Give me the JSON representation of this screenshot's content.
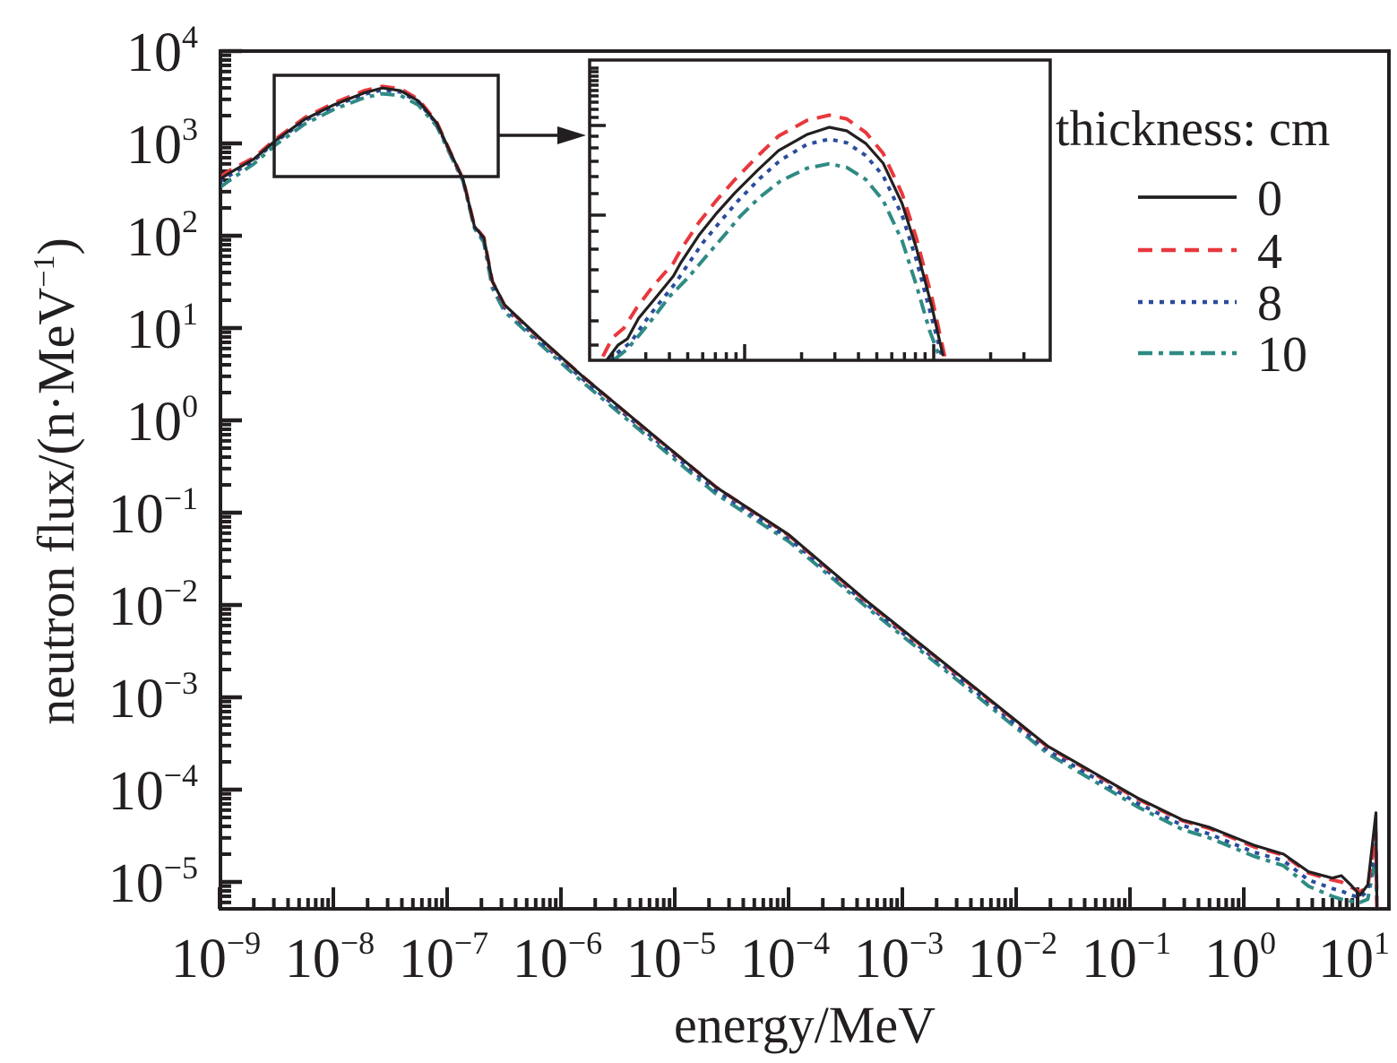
{
  "chart_data": {
    "type": "line",
    "title": "",
    "xlabel": "energy/MeV",
    "ylabel_main": "neutron flux/(n·MeV",
    "ylabel_sup": "−1",
    "ylabel_close": ")",
    "xscale": "log",
    "yscale": "log",
    "xlim": [
      1e-09,
      20
    ],
    "ylim": [
      5e-06,
      10000
    ],
    "grid": false,
    "x_ticks": [
      {
        "base": "10",
        "exp": "−9",
        "value": 1e-09
      },
      {
        "base": "10",
        "exp": "−8",
        "value": 1e-08
      },
      {
        "base": "10",
        "exp": "−7",
        "value": 1e-07
      },
      {
        "base": "10",
        "exp": "−6",
        "value": 1e-06
      },
      {
        "base": "10",
        "exp": "−5",
        "value": 1e-05
      },
      {
        "base": "10",
        "exp": "−4",
        "value": 0.0001
      },
      {
        "base": "10",
        "exp": "−3",
        "value": 0.001
      },
      {
        "base": "10",
        "exp": "−2",
        "value": 0.01
      },
      {
        "base": "10",
        "exp": "−1",
        "value": 0.1
      },
      {
        "base": "10",
        "exp": "0",
        "value": 1
      },
      {
        "base": "10",
        "exp": "1",
        "value": 10
      }
    ],
    "y_ticks": [
      {
        "base": "10",
        "exp": "4",
        "value": 10000.0
      },
      {
        "base": "10",
        "exp": "3",
        "value": 1000.0
      },
      {
        "base": "10",
        "exp": "2",
        "value": 100.0
      },
      {
        "base": "10",
        "exp": "1",
        "value": 10.0
      },
      {
        "base": "10",
        "exp": "0",
        "value": 1
      },
      {
        "base": "10",
        "exp": "−1",
        "value": 0.1
      },
      {
        "base": "10",
        "exp": "−2",
        "value": 0.01
      },
      {
        "base": "10",
        "exp": "−3",
        "value": 0.001
      },
      {
        "base": "10",
        "exp": "−4",
        "value": 0.0001
      },
      {
        "base": "10",
        "exp": "−5",
        "value": 1e-05
      }
    ],
    "legend": {
      "title": "thickness: cm",
      "placement": "top-right"
    },
    "series": [
      {
        "name": "0",
        "color": "#231f20",
        "dash": "solid",
        "points": [
          [
            1e-09,
            407
          ],
          [
            1.23e-09,
            479
          ],
          [
            2e-09,
            676
          ],
          [
            3.1e-09,
            1072
          ],
          [
            5.6e-09,
            1820
          ],
          [
            1.02e-08,
            2630
          ],
          [
            1.9e-08,
            3550
          ],
          [
            2.7e-08,
            3980
          ],
          [
            3.9e-08,
            3720
          ],
          [
            5.6e-08,
            2880
          ],
          [
            8.1e-08,
            1660
          ],
          [
            1.07e-07,
            794
          ],
          [
            1.38e-07,
            407
          ],
          [
            1.74e-07,
            126
          ],
          [
            2.1e-07,
            95
          ],
          [
            2.5e-07,
            32
          ],
          [
            3.2e-07,
            17.8
          ],
          [
            6.3e-07,
            8.1
          ],
          [
            1.55e-06,
            3.0
          ],
          [
            6.6e-06,
            0.68
          ],
          [
            2.3e-05,
            0.19
          ],
          [
            0.0001,
            0.058
          ],
          [
            0.00051,
            0.0105
          ],
          [
            0.00316,
            0.00174
          ],
          [
            0.019,
            0.000295
          ],
          [
            0.117,
            8.1e-05
          ],
          [
            0.29,
            4.7e-05
          ],
          [
            0.5,
            3.9e-05
          ],
          [
            1.23,
            2.5e-05
          ],
          [
            2.24,
            2e-05
          ],
          [
            3.7,
            1.29e-05
          ],
          [
            6.0,
            1.1e-05
          ],
          [
            7.2,
            1.17e-05
          ],
          [
            8.7,
            9.3e-06
          ],
          [
            10.5,
            7.2e-06
          ],
          [
            12.3,
            9.3e-06
          ],
          [
            14.5,
            5.6e-05
          ],
          [
            14.8,
            5e-06
          ]
        ]
      },
      {
        "name": "4",
        "color": "#e8383d",
        "dash": "dashed",
        "points": [
          [
            1e-09,
            430
          ],
          [
            1.23e-09,
            510
          ],
          [
            2e-09,
            700
          ],
          [
            3.1e-09,
            1110
          ],
          [
            5.6e-09,
            1900
          ],
          [
            1.02e-08,
            2750
          ],
          [
            1.9e-08,
            3750
          ],
          [
            2.7e-08,
            4150
          ],
          [
            3.9e-08,
            3900
          ],
          [
            5.6e-08,
            3000
          ],
          [
            8.1e-08,
            1700
          ],
          [
            1.07e-07,
            800
          ],
          [
            1.38e-07,
            410
          ],
          [
            1.74e-07,
            128
          ],
          [
            2.1e-07,
            96
          ],
          [
            2.5e-07,
            32
          ],
          [
            3.2e-07,
            17.5
          ],
          [
            6.3e-07,
            8.0
          ],
          [
            1.55e-06,
            3.0
          ],
          [
            6.6e-06,
            0.67
          ],
          [
            2.3e-05,
            0.19
          ],
          [
            0.0001,
            0.057
          ],
          [
            0.00051,
            0.0103
          ],
          [
            0.00316,
            0.00171
          ],
          [
            0.019,
            0.00029
          ],
          [
            0.117,
            7.9e-05
          ],
          [
            0.29,
            4.6e-05
          ],
          [
            0.5,
            3.8e-05
          ],
          [
            1.23,
            2.4e-05
          ],
          [
            2.24,
            1.95e-05
          ],
          [
            3.7,
            1.25e-05
          ],
          [
            6.0,
            1.05e-05
          ],
          [
            7.2,
            1e-05
          ],
          [
            8.7,
            8.8e-06
          ],
          [
            10.5,
            7.8e-06
          ],
          [
            12.3,
            9e-06
          ],
          [
            14.5,
            3.5e-05
          ],
          [
            14.8,
            5e-06
          ]
        ]
      },
      {
        "name": "8",
        "color": "#2b4c9b",
        "dash": "dotted",
        "points": [
          [
            1e-09,
            380
          ],
          [
            1.23e-09,
            450
          ],
          [
            2e-09,
            650
          ],
          [
            3.1e-09,
            1040
          ],
          [
            5.6e-09,
            1760
          ],
          [
            1.02e-08,
            2550
          ],
          [
            1.9e-08,
            3430
          ],
          [
            2.7e-08,
            3800
          ],
          [
            3.9e-08,
            3600
          ],
          [
            5.6e-08,
            2800
          ],
          [
            8.1e-08,
            1620
          ],
          [
            1.07e-07,
            780
          ],
          [
            1.38e-07,
            400
          ],
          [
            1.74e-07,
            124
          ],
          [
            2.1e-07,
            90
          ],
          [
            2.5e-07,
            30
          ],
          [
            3.2e-07,
            16.5
          ],
          [
            6.3e-07,
            7.5
          ],
          [
            1.55e-06,
            2.8
          ],
          [
            6.6e-06,
            0.63
          ],
          [
            2.3e-05,
            0.175
          ],
          [
            0.0001,
            0.053
          ],
          [
            0.00051,
            0.0097
          ],
          [
            0.00316,
            0.0016
          ],
          [
            0.019,
            0.000265
          ],
          [
            0.117,
            7.1e-05
          ],
          [
            0.29,
            4.1e-05
          ],
          [
            0.5,
            3.3e-05
          ],
          [
            1.23,
            2.1e-05
          ],
          [
            2.24,
            1.7e-05
          ],
          [
            3.7,
            1.05e-05
          ],
          [
            6.0,
            8.5e-06
          ],
          [
            7.2,
            8e-06
          ],
          [
            8.7,
            7.2e-06
          ],
          [
            10.5,
            6.8e-06
          ],
          [
            12.3,
            8e-06
          ],
          [
            14.5,
            2.6e-05
          ],
          [
            14.8,
            5e-06
          ]
        ]
      },
      {
        "name": "10",
        "color": "#2f8a84",
        "dash": "dash-dot",
        "points": [
          [
            1e-09,
            330
          ],
          [
            1.23e-09,
            400
          ],
          [
            2e-09,
            600
          ],
          [
            3.1e-09,
            960
          ],
          [
            5.6e-09,
            1620
          ],
          [
            1.02e-08,
            2350
          ],
          [
            1.9e-08,
            3150
          ],
          [
            2.7e-08,
            3450
          ],
          [
            3.9e-08,
            3300
          ],
          [
            5.6e-08,
            2600
          ],
          [
            8.1e-08,
            1540
          ],
          [
            1.07e-07,
            750
          ],
          [
            1.38e-07,
            390
          ],
          [
            1.74e-07,
            120
          ],
          [
            2.1e-07,
            85
          ],
          [
            2.5e-07,
            27
          ],
          [
            3.2e-07,
            15
          ],
          [
            6.3e-07,
            7.0
          ],
          [
            1.55e-06,
            2.6
          ],
          [
            6.6e-06,
            0.58
          ],
          [
            2.3e-05,
            0.16
          ],
          [
            0.0001,
            0.049
          ],
          [
            0.00051,
            0.009
          ],
          [
            0.00316,
            0.00148
          ],
          [
            0.019,
            0.000245
          ],
          [
            0.117,
            6.5e-05
          ],
          [
            0.29,
            3.7e-05
          ],
          [
            0.5,
            3e-05
          ],
          [
            1.23,
            1.9e-05
          ],
          [
            2.24,
            1.5e-05
          ],
          [
            3.7,
            9e-06
          ],
          [
            6.0,
            7e-06
          ],
          [
            7.2,
            6.5e-06
          ],
          [
            8.7,
            6.2e-06
          ],
          [
            10.5,
            6e-06
          ],
          [
            12.3,
            6.5e-06
          ],
          [
            14.5,
            1.9e-05
          ],
          [
            14.8,
            5e-06
          ]
        ]
      }
    ],
    "inset": {
      "description_of_region": "magnified view of region E 3e-9 to 2.8e-7 MeV",
      "xlim": [
        1.6e-09,
        3.9e-07
      ],
      "ylim_linear": [
        850,
        4900
      ],
      "series": [
        {
          "name": "0",
          "points": [
            [
              1.86e-09,
              848
            ],
            [
              2.14e-09,
              1052
            ],
            [
              2.4e-09,
              1136
            ],
            [
              2.75e-09,
              1412
            ],
            [
              3.3e-09,
              1652
            ],
            [
              4.2e-09,
              1976
            ],
            [
              4.6e-09,
              2156
            ],
            [
              5.75e-09,
              2528
            ],
            [
              7.1e-09,
              2816
            ],
            [
              8.9e-09,
              3092
            ],
            [
              1.17e-08,
              3392
            ],
            [
              1.51e-08,
              3656
            ],
            [
              2.14e-08,
              3872
            ],
            [
              2.8e-08,
              3968
            ],
            [
              3.47e-08,
              3920
            ],
            [
              4.37e-08,
              3752
            ],
            [
              5.4e-08,
              3488
            ],
            [
              6.8e-08,
              2948
            ],
            [
              8.1e-08,
              2348
            ],
            [
              9.8e-08,
              1556
            ],
            [
              1.12e-07,
              908
            ]
          ]
        },
        {
          "name": "4",
          "points": [
            [
              1.78e-09,
              900
            ],
            [
              2e-09,
              1150
            ],
            [
              2.3e-09,
              1280
            ],
            [
              2.7e-09,
              1560
            ],
            [
              3.3e-09,
              1850
            ],
            [
              4.2e-09,
              2150
            ],
            [
              4.6e-09,
              2330
            ],
            [
              5.75e-09,
              2700
            ],
            [
              7.1e-09,
              2990
            ],
            [
              8.9e-09,
              3270
            ],
            [
              1.17e-08,
              3580
            ],
            [
              1.51e-08,
              3850
            ],
            [
              2.14e-08,
              4060
            ],
            [
              2.8e-08,
              4130
            ],
            [
              3.47e-08,
              4080
            ],
            [
              4.37e-08,
              3900
            ],
            [
              5.4e-08,
              3620
            ],
            [
              6.8e-08,
              3080
            ],
            [
              8.1e-08,
              2480
            ],
            [
              9.8e-08,
              1680
            ],
            [
              1.15e-07,
              870
            ]
          ]
        },
        {
          "name": "8",
          "points": [
            [
              1.9e-09,
              860
            ],
            [
              2.2e-09,
              980
            ],
            [
              2.5e-09,
              1090
            ],
            [
              2.9e-09,
              1330
            ],
            [
              3.4e-09,
              1560
            ],
            [
              4.3e-09,
              1880
            ],
            [
              4.8e-09,
              2060
            ],
            [
              6e-09,
              2420
            ],
            [
              7.4e-09,
              2700
            ],
            [
              9.2e-09,
              2980
            ],
            [
              1.2e-08,
              3280
            ],
            [
              1.55e-08,
              3530
            ],
            [
              2.14e-08,
              3740
            ],
            [
              2.8e-08,
              3810
            ],
            [
              3.47e-08,
              3760
            ],
            [
              4.37e-08,
              3590
            ],
            [
              5.4e-08,
              3320
            ],
            [
              6.8e-08,
              2790
            ],
            [
              8.1e-08,
              2190
            ],
            [
              9.8e-08,
              1400
            ],
            [
              1.11e-07,
              880
            ]
          ]
        },
        {
          "name": "10",
          "points": [
            [
              2.05e-09,
              860
            ],
            [
              2.4e-09,
              1000
            ],
            [
              2.8e-09,
              1200
            ],
            [
              3.3e-09,
              1420
            ],
            [
              4e-09,
              1700
            ],
            [
              5e-09,
              1950
            ],
            [
              6.3e-09,
              2250
            ],
            [
              7.8e-09,
              2520
            ],
            [
              9.5e-09,
              2780
            ],
            [
              1.2e-08,
              3030
            ],
            [
              1.55e-08,
              3250
            ],
            [
              2.14e-08,
              3420
            ],
            [
              2.8e-08,
              3480
            ],
            [
              3.47e-08,
              3430
            ],
            [
              4.37e-08,
              3270
            ],
            [
              5.4e-08,
              2990
            ],
            [
              6.8e-08,
              2450
            ],
            [
              8.1e-08,
              1850
            ],
            [
              9.5e-08,
              1250
            ],
            [
              1.08e-07,
              870
            ]
          ]
        }
      ]
    }
  }
}
